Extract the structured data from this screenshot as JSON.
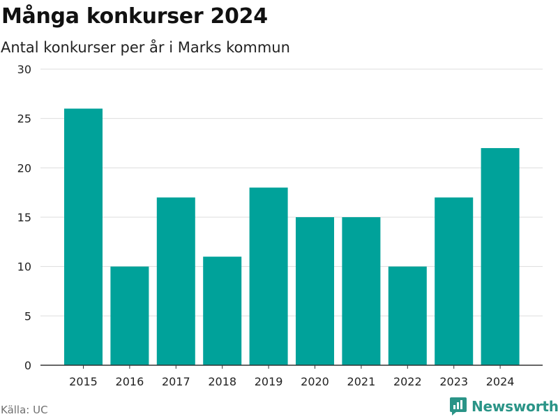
{
  "header": {
    "title": "Många konkurser 2024",
    "subtitle": "Antal konkurser per år i Marks kommun"
  },
  "footer": {
    "source": "Källa: UC",
    "brand": "Newsworthy",
    "brand_icon": "newsworthy-logo-icon"
  },
  "colors": {
    "bar": "#00a29a",
    "brand": "#2a9487",
    "grid": "#dddddd",
    "axis": "#333333"
  },
  "chart_data": {
    "type": "bar",
    "categories": [
      "2015",
      "2016",
      "2017",
      "2018",
      "2019",
      "2020",
      "2021",
      "2022",
      "2023",
      "2024"
    ],
    "values": [
      26,
      10,
      17,
      11,
      18,
      15,
      15,
      10,
      17,
      22
    ],
    "ylim": [
      0,
      30
    ],
    "yticks": [
      0,
      5,
      10,
      15,
      20,
      25,
      30
    ],
    "grid": true
  }
}
